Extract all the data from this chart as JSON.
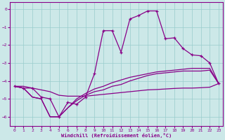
{
  "xlabel": "Windchill (Refroidissement éolien,°C)",
  "bg_color": "#cce8e8",
  "line_color": "#880088",
  "grid_color": "#99cccc",
  "xlim": [
    -0.5,
    23.5
  ],
  "ylim": [
    -6.5,
    0.4
  ],
  "yticks": [
    0,
    -1,
    -2,
    -3,
    -4,
    -5,
    -6
  ],
  "xticks": [
    0,
    1,
    2,
    3,
    4,
    5,
    6,
    7,
    8,
    9,
    10,
    11,
    12,
    13,
    14,
    15,
    16,
    17,
    18,
    19,
    20,
    21,
    22,
    23
  ],
  "s1_x": [
    0,
    1,
    2,
    3,
    4,
    5,
    6,
    7,
    8,
    9,
    10,
    11,
    12,
    13,
    14,
    15,
    16,
    17,
    18,
    19,
    20,
    21,
    22,
    23
  ],
  "s1_y": [
    -4.3,
    -4.4,
    -4.4,
    -4.9,
    -5.0,
    -6.0,
    -5.2,
    -5.3,
    -4.9,
    -3.6,
    -1.2,
    -1.2,
    -2.4,
    -0.55,
    -0.35,
    -0.1,
    -0.1,
    -1.65,
    -1.6,
    -2.2,
    -2.55,
    -2.6,
    -3.0,
    -4.15
  ],
  "s2_x": [
    0,
    1,
    2,
    3,
    4,
    5,
    6,
    7,
    8,
    9,
    10,
    11,
    12,
    13,
    14,
    15,
    16,
    17,
    18,
    19,
    20,
    21,
    22,
    23
  ],
  "s2_y": [
    -4.3,
    -4.4,
    -4.9,
    -5.0,
    -6.0,
    -6.0,
    -5.5,
    -5.1,
    -4.8,
    -4.6,
    -4.5,
    -4.3,
    -4.2,
    -4.0,
    -3.85,
    -3.7,
    -3.6,
    -3.55,
    -3.5,
    -3.45,
    -3.45,
    -3.45,
    -3.4,
    -4.15
  ],
  "s3_x": [
    0,
    1,
    2,
    3,
    4,
    5,
    6,
    7,
    8,
    9,
    10,
    11,
    12,
    13,
    14,
    15,
    16,
    17,
    18,
    19,
    20,
    21,
    22,
    23
  ],
  "s3_y": [
    -4.3,
    -4.4,
    -4.9,
    -5.0,
    -6.0,
    -6.0,
    -5.5,
    -5.0,
    -4.7,
    -4.45,
    -4.3,
    -4.1,
    -3.95,
    -3.8,
    -3.7,
    -3.6,
    -3.5,
    -3.45,
    -3.4,
    -3.35,
    -3.3,
    -3.3,
    -3.3,
    -4.15
  ],
  "s4_x": [
    0,
    1,
    2,
    3,
    4,
    5,
    6,
    7,
    8,
    9,
    10,
    11,
    12,
    13,
    14,
    15,
    16,
    17,
    18,
    19,
    20,
    21,
    22,
    23
  ],
  "s4_y": [
    -4.3,
    -4.3,
    -4.4,
    -4.5,
    -4.6,
    -4.8,
    -4.85,
    -4.85,
    -4.85,
    -4.8,
    -4.75,
    -4.7,
    -4.65,
    -4.6,
    -4.55,
    -4.5,
    -4.48,
    -4.45,
    -4.42,
    -4.4,
    -4.4,
    -4.38,
    -4.35,
    -4.15
  ]
}
